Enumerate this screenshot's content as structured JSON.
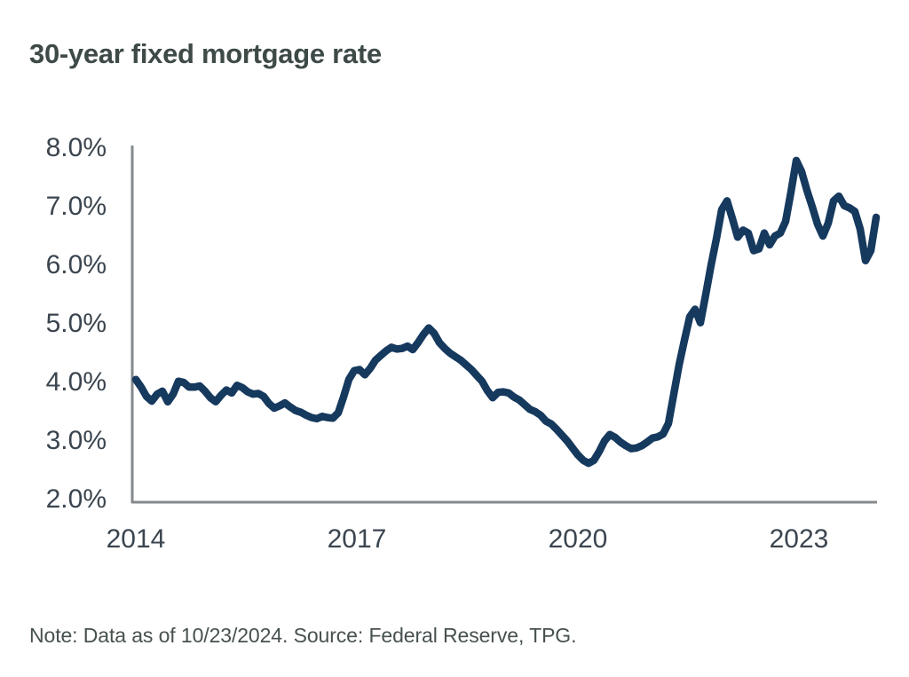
{
  "title": "30-year fixed mortgage rate",
  "note": "Note: Data as of 10/23/2024. Source: Federal Reserve, TPG.",
  "colors": {
    "line": "#16395e",
    "axis": "#85898c",
    "title_text": "#3e4a48",
    "tick_text": "#3b454f",
    "note_text": "#475150",
    "background": "#ffffff"
  },
  "chart_data": {
    "type": "line",
    "title": "30-year fixed mortgage rate",
    "xlabel": "",
    "ylabel": "30-year fixed mortgage rate (%)",
    "x_tick_labels": [
      "2014",
      "2017",
      "2020",
      "2023"
    ],
    "y_tick_labels": [
      "8.0%",
      "7.0%",
      "6.0%",
      "5.0%",
      "4.0%",
      "3.0%",
      "2.0%"
    ],
    "ylim": [
      2.0,
      8.0
    ],
    "x_range": {
      "start": "2014-01",
      "end": "2024-10-23"
    },
    "grid": false,
    "legend": false,
    "sampling": "uniform in time from Jan 2014 through Oct 23, 2024, values in percent",
    "series": [
      {
        "name": "30-year fixed mortgage rate",
        "unit": "%",
        "values": [
          4.05,
          3.92,
          3.76,
          3.68,
          3.8,
          3.85,
          3.67,
          3.8,
          4.02,
          4.0,
          3.92,
          3.92,
          3.94,
          3.85,
          3.74,
          3.67,
          3.78,
          3.87,
          3.82,
          3.95,
          3.91,
          3.84,
          3.8,
          3.81,
          3.76,
          3.64,
          3.56,
          3.6,
          3.65,
          3.58,
          3.52,
          3.49,
          3.44,
          3.4,
          3.38,
          3.42,
          3.4,
          3.39,
          3.48,
          3.75,
          4.05,
          4.2,
          4.22,
          4.13,
          4.24,
          4.38,
          4.46,
          4.54,
          4.6,
          4.57,
          4.58,
          4.62,
          4.56,
          4.68,
          4.82,
          4.93,
          4.84,
          4.68,
          4.58,
          4.5,
          4.44,
          4.38,
          4.3,
          4.22,
          4.12,
          4.02,
          3.86,
          3.74,
          3.83,
          3.84,
          3.82,
          3.75,
          3.7,
          3.62,
          3.54,
          3.5,
          3.44,
          3.34,
          3.29,
          3.2,
          3.1,
          3.0,
          2.88,
          2.76,
          2.67,
          2.62,
          2.67,
          2.82,
          3.0,
          3.11,
          3.06,
          2.98,
          2.92,
          2.87,
          2.88,
          2.92,
          2.98,
          3.05,
          3.07,
          3.12,
          3.3,
          3.8,
          4.3,
          4.72,
          5.12,
          5.25,
          5.02,
          5.5,
          6.0,
          6.45,
          6.95,
          7.1,
          6.8,
          6.48,
          6.6,
          6.55,
          6.25,
          6.28,
          6.55,
          6.35,
          6.5,
          6.55,
          6.75,
          7.25,
          7.79,
          7.6,
          7.28,
          7.0,
          6.7,
          6.5,
          6.72,
          7.1,
          7.18,
          7.02,
          6.98,
          6.92,
          6.62,
          6.08,
          6.25,
          6.82
        ]
      }
    ]
  }
}
